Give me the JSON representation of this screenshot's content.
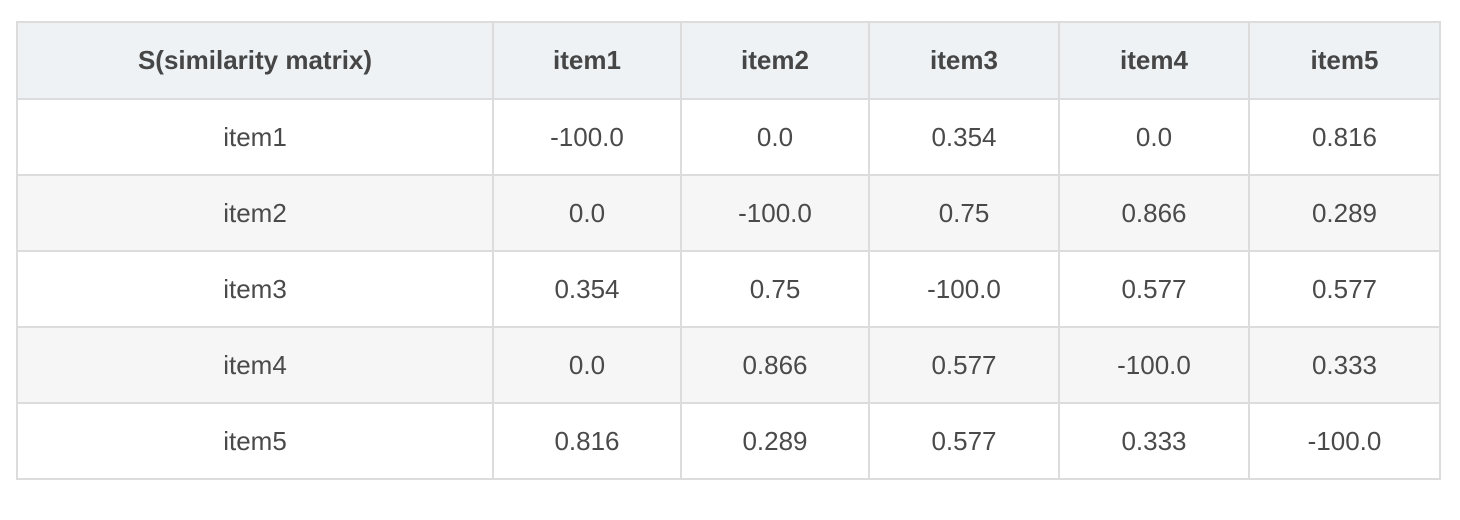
{
  "table": {
    "corner_header": "S(similarity matrix)",
    "columns": [
      "item1",
      "item2",
      "item3",
      "item4",
      "item5"
    ],
    "rows": [
      {
        "label": "item1",
        "values": [
          "-100.0",
          "0.0",
          "0.354",
          "0.0",
          "0.816"
        ]
      },
      {
        "label": "item2",
        "values": [
          "0.0",
          "-100.0",
          "0.75",
          "0.866",
          "0.289"
        ]
      },
      {
        "label": "item3",
        "values": [
          "0.354",
          "0.75",
          "-100.0",
          "0.577",
          "0.577"
        ]
      },
      {
        "label": "item4",
        "values": [
          "0.0",
          "0.866",
          "0.577",
          "-100.0",
          "0.333"
        ]
      },
      {
        "label": "item5",
        "values": [
          "0.816",
          "0.289",
          "0.577",
          "0.333",
          "-100.0"
        ]
      }
    ]
  },
  "colors": {
    "header_background": "#eef2f5",
    "row_alt_background": "#f6f6f6",
    "border": "#dcdcdc",
    "text": "#4a4a4a"
  }
}
